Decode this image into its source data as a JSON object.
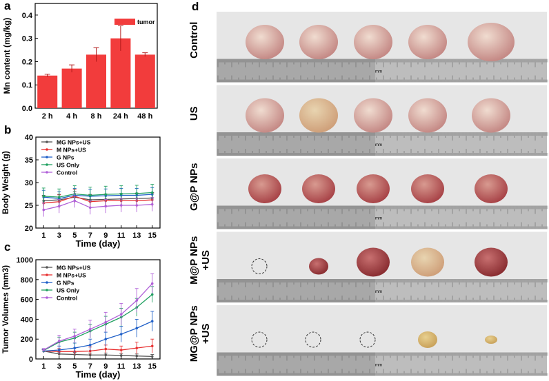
{
  "colors": {
    "bar": "#f23c3c",
    "mg": "#555555",
    "m": "#e83030",
    "g": "#2060c8",
    "us": "#1fa060",
    "control": "#b060d8",
    "photo_bg": "#e6e6e6",
    "ruler": "#bdbdbd"
  },
  "panel_labels": {
    "a": "a",
    "b": "b",
    "c": "c",
    "d": "d"
  },
  "chart_data": [
    {
      "id": "a",
      "type": "bar",
      "title": "",
      "xlabel": "",
      "ylabel": "Mn content (mg/kg)",
      "categories": [
        "2 h",
        "4 h",
        "8 h",
        "24 h",
        "48 h"
      ],
      "values": [
        0.14,
        0.17,
        0.23,
        0.3,
        0.23
      ],
      "errors": [
        0.006,
        0.016,
        0.03,
        0.054,
        0.008
      ],
      "ylim": [
        0,
        0.45
      ],
      "yticks": [
        "0.0",
        "0.1",
        "0.2",
        "0.3",
        "0.4"
      ],
      "legend": [
        "tumor"
      ],
      "legend_position": "top-right"
    },
    {
      "id": "b",
      "type": "line",
      "xlabel": "Time (day)",
      "ylabel": "Body Weight (g)",
      "x": [
        1,
        3,
        5,
        7,
        9,
        11,
        13,
        15
      ],
      "xticks": [
        "1",
        "3",
        "5",
        "7",
        "9",
        "11",
        "13",
        "15"
      ],
      "ylim": [
        20,
        40
      ],
      "yticks": [
        "20",
        "25",
        "30",
        "35",
        "40"
      ],
      "legend_position": "top-left",
      "series": [
        {
          "name": "MG NPs+US",
          "key": "mg",
          "values": [
            26.0,
            26.2,
            26.8,
            26.2,
            26.3,
            26.4,
            26.5,
            26.6
          ],
          "error": 1.2
        },
        {
          "name": "M NPs+US",
          "key": "m",
          "values": [
            25.5,
            25.8,
            27.0,
            25.8,
            26.0,
            26.0,
            26.0,
            26.2
          ],
          "error": 1.5
        },
        {
          "name": "G NPs",
          "key": "g",
          "values": [
            26.8,
            26.5,
            27.2,
            27.0,
            27.1,
            27.2,
            27.2,
            27.4
          ],
          "error": 1.5
        },
        {
          "name": "US Only",
          "key": "us",
          "values": [
            27.0,
            26.8,
            27.5,
            27.2,
            27.4,
            27.5,
            27.6,
            27.8
          ],
          "error": 1.8
        },
        {
          "name": "Control",
          "key": "control",
          "values": [
            24.0,
            24.8,
            26.0,
            24.5,
            24.8,
            25.0,
            25.0,
            25.2
          ],
          "error": 1.5
        }
      ]
    },
    {
      "id": "c",
      "type": "line",
      "xlabel": "Time (day)",
      "ylabel": "Tumor Volumes (mm3)",
      "x": [
        1,
        3,
        5,
        7,
        9,
        11,
        13,
        15
      ],
      "xticks": [
        "1",
        "3",
        "5",
        "7",
        "9",
        "11",
        "13",
        "15"
      ],
      "ylim": [
        0,
        1000
      ],
      "yticks": [
        "0",
        "200",
        "400",
        "600",
        "800",
        "1000"
      ],
      "legend_position": "top-left",
      "series": [
        {
          "name": "MG NPs+US",
          "key": "mg",
          "values": [
            80,
            50,
            45,
            40,
            40,
            35,
            30,
            25
          ],
          "errors": [
            15,
            20,
            20,
            20,
            20,
            20,
            20,
            20
          ]
        },
        {
          "name": "M NPs+US",
          "key": "m",
          "values": [
            80,
            75,
            75,
            80,
            100,
            90,
            110,
            130
          ],
          "errors": [
            15,
            30,
            35,
            40,
            40,
            40,
            60,
            70
          ]
        },
        {
          "name": "G NPs",
          "key": "g",
          "values": [
            80,
            90,
            110,
            140,
            200,
            250,
            310,
            380
          ],
          "errors": [
            15,
            40,
            50,
            60,
            70,
            80,
            90,
            100
          ]
        },
        {
          "name": "US Only",
          "key": "us",
          "values": [
            85,
            170,
            210,
            280,
            350,
            420,
            520,
            650
          ],
          "errors": [
            15,
            50,
            60,
            70,
            80,
            90,
            90,
            80
          ]
        },
        {
          "name": "Control",
          "key": "control",
          "values": [
            90,
            180,
            230,
            300,
            370,
            450,
            590,
            760
          ],
          "errors": [
            15,
            60,
            70,
            90,
            100,
            110,
            120,
            100
          ]
        }
      ]
    }
  ],
  "photo_panel": {
    "rows": [
      {
        "label_line1": "Control",
        "label_line2": "",
        "ruler_unit": "mm",
        "tumors": [
          "tumor-large",
          "tumor-large",
          "tumor-large",
          "tumor-large",
          "tumor-xlarge"
        ]
      },
      {
        "label_line1": "US",
        "label_line2": "",
        "ruler_unit": "mm",
        "tumors": [
          "tumor-large",
          "tumor-large",
          "tumor-large",
          "tumor-large",
          "tumor-large"
        ]
      },
      {
        "label_line1": "G@P NPs",
        "label_line2": "",
        "ruler_unit": "mm",
        "tumors": [
          "tumor-medium",
          "tumor-medium",
          "tumor-medium",
          "tumor-medium",
          "tumor-medium"
        ]
      },
      {
        "label_line1": "M@P NPs",
        "label_line2": "+US",
        "ruler_unit": "mm",
        "tumors": [
          "empty",
          "tumor-small",
          "tumor-medium",
          "tumor-medium",
          "tumor-medium"
        ]
      },
      {
        "label_line1": "MG@P NPs",
        "label_line2": "+US",
        "ruler_unit": "mm",
        "tumors": [
          "empty",
          "empty",
          "empty",
          "tumor-small",
          "tumor-tiny"
        ]
      }
    ]
  }
}
